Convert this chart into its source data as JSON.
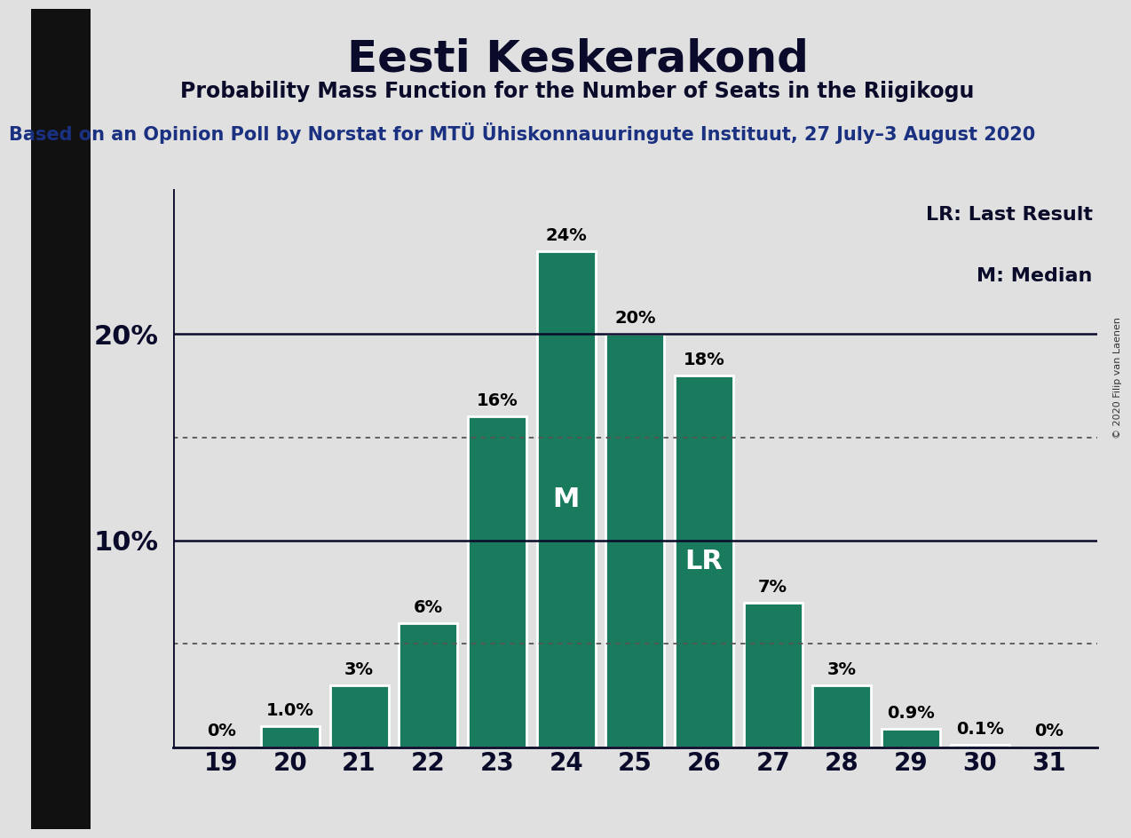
{
  "title": "Eesti Keskerakond",
  "subtitle": "Probability Mass Function for the Number of Seats in the Riigikogu",
  "source_text": "Based on an Opinion Poll by Norstat for MTÜ Ühiskonnauuringute Instituut, 27 July–3 August 2020",
  "copyright_text": "© 2020 Filip van Laenen",
  "seats": [
    19,
    20,
    21,
    22,
    23,
    24,
    25,
    26,
    27,
    28,
    29,
    30,
    31
  ],
  "probabilities": [
    0.0,
    1.0,
    3.0,
    6.0,
    16.0,
    24.0,
    20.0,
    18.0,
    7.0,
    3.0,
    0.9,
    0.1,
    0.0
  ],
  "bar_labels": [
    "0%",
    "1.0%",
    "3%",
    "6%",
    "16%",
    "24%",
    "20%",
    "18%",
    "7%",
    "3%",
    "0.9%",
    "0.1%",
    "0%"
  ],
  "bar_color": "#1a7a5e",
  "background_color": "#e0e0e0",
  "left_bar_color": "#111111",
  "median_seat": 24,
  "last_result_seat": 26,
  "ylim": [
    0,
    27
  ],
  "ytick_positions": [
    10,
    20
  ],
  "ytick_labels": [
    "10%",
    "20%"
  ],
  "dotted_lines": [
    5.0,
    15.0
  ],
  "legend_lr": "LR: Last Result",
  "legend_m": "M: Median",
  "label_fontsize": 14,
  "ytick_fontsize": 22,
  "xtick_fontsize": 20,
  "title_fontsize": 36,
  "subtitle_fontsize": 17,
  "source_fontsize": 15,
  "legend_fontsize": 16
}
